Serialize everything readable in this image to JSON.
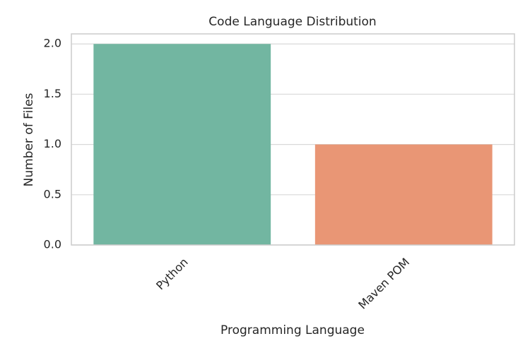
{
  "chart_data": {
    "type": "bar",
    "title": "Code Language Distribution",
    "x_label": "Programming Language",
    "y_label": "Number of Files",
    "categories": [
      "Python",
      "Maven POM"
    ],
    "values": [
      2,
      1
    ],
    "colors": [
      "#72b6a1",
      "#e99675"
    ],
    "ylim": [
      0,
      2.1
    ],
    "yticks": [
      {
        "value": 0,
        "label": "0.0"
      },
      {
        "value": 0.5,
        "label": "0.5"
      },
      {
        "value": 1,
        "label": "1.0"
      },
      {
        "value": 1.5,
        "label": "1.5"
      },
      {
        "value": 2,
        "label": "2.0"
      }
    ],
    "grid": true
  }
}
